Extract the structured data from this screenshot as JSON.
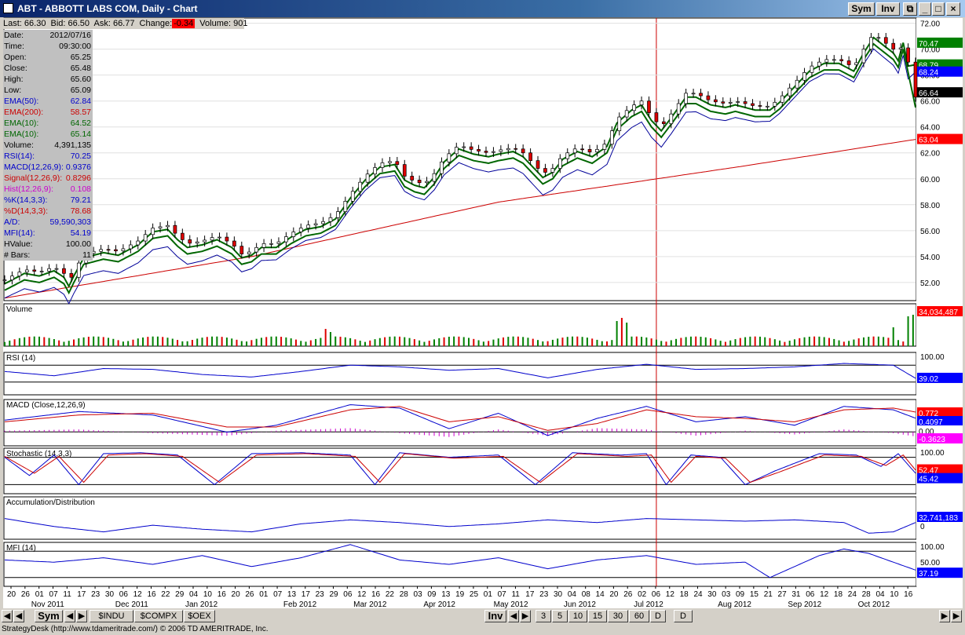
{
  "window": {
    "title": "ABT - ABBOTT LABS COM, Daily - Chart",
    "buttons": [
      "Sym",
      "Inv"
    ]
  },
  "quote_bar": {
    "last": "Last: 66.30",
    "bid": "Bid: 66.50",
    "ask": "Ask: 66.77",
    "change_label": "Change:",
    "change": "-0.34",
    "volume": "Volume: 901"
  },
  "info_panel": [
    {
      "label": "Date:",
      "value": "2012/07/16",
      "color": "#000000"
    },
    {
      "label": "Time:",
      "value": "09:30:00",
      "color": "#000000"
    },
    {
      "label": "Open:",
      "value": "65.25",
      "color": "#000000"
    },
    {
      "label": "Close:",
      "value": "65.48",
      "color": "#000000"
    },
    {
      "label": "High:",
      "value": "65.60",
      "color": "#000000"
    },
    {
      "label": "Low:",
      "value": "65.09",
      "color": "#000000"
    },
    {
      "label": "EMA(50):",
      "value": "62.84",
      "color": "#0000cc"
    },
    {
      "label": "EMA(200):",
      "value": "58.57",
      "color": "#cc0000"
    },
    {
      "label": "EMA(10):",
      "value": "64.52",
      "color": "#006600"
    },
    {
      "label": "EMA(10):",
      "value": "65.14",
      "color": "#006600"
    },
    {
      "label": "Volume:",
      "value": "4,391,135",
      "color": "#000000"
    },
    {
      "label": "RSI(14):",
      "value": "70.25",
      "color": "#0000cc"
    },
    {
      "label": "MACD(12,26,9):",
      "value": "0.9376",
      "color": "#0000cc"
    },
    {
      "label": "Signal(12,26,9):",
      "value": "0.8296",
      "color": "#cc0000"
    },
    {
      "label": "Hist(12,26,9):",
      "value": "0.108",
      "color": "#cc00cc"
    },
    {
      "label": "%K(14,3,3):",
      "value": "79.21",
      "color": "#0000cc"
    },
    {
      "label": "%D(14,3,3):",
      "value": "78.68",
      "color": "#cc0000"
    },
    {
      "label": "A/D:",
      "value": "59,590,303",
      "color": "#0000cc"
    },
    {
      "label": "MFI(14):",
      "value": "54.19",
      "color": "#0000cc"
    },
    {
      "label": "HValue:",
      "value": "100.00",
      "color": "#000000"
    },
    {
      "label": "# Bars:",
      "value": "11",
      "color": "#000000"
    }
  ],
  "chart_data": [
    {
      "type": "candlestick",
      "title": "",
      "y_ticks": [
        "72.00",
        "70.00",
        "68.00",
        "66.00",
        "64.00",
        "62.00",
        "60.00",
        "58.00",
        "56.00",
        "54.00",
        "52.00"
      ],
      "ylim": [
        50.6,
        72.4
      ],
      "x_ticks": [
        "20",
        "26",
        "01",
        "07",
        "11",
        "17",
        "23",
        "30",
        "06",
        "12",
        "16",
        "22",
        "29",
        "04",
        "10",
        "16",
        "20",
        "26",
        "01",
        "07",
        "13",
        "17",
        "23",
        "29",
        "06",
        "12",
        "16",
        "22",
        "28",
        "03",
        "09",
        "13",
        "19",
        "25",
        "01",
        "07",
        "11",
        "17",
        "23",
        "30",
        "04",
        "08",
        "14",
        "20",
        "26",
        "02",
        "06",
        "12",
        "18",
        "24",
        "30",
        "03",
        "09",
        "15",
        "21",
        "27",
        "31",
        "06",
        "12",
        "18",
        "24",
        "28",
        "04",
        "10",
        "16"
      ],
      "x_months": [
        "Nov 2011",
        "Dec 2011",
        "Jan 2012",
        "Feb 2012",
        "Mar 2012",
        "Apr 2012",
        "May 2012",
        "Jun 2012",
        "Jul 2012",
        "Aug 2012",
        "Sep 2012",
        "Oct 2012"
      ],
      "price_path": [
        [
          0,
          52.2
        ],
        [
          8,
          53.0
        ],
        [
          14,
          52.8
        ],
        [
          20,
          53.2
        ],
        [
          24,
          52.7
        ],
        [
          26,
          52.0
        ],
        [
          28,
          52.8
        ],
        [
          32,
          54.2
        ],
        [
          40,
          54.6
        ],
        [
          46,
          54.4
        ],
        [
          54,
          55.2
        ],
        [
          60,
          56.2
        ],
        [
          66,
          56.4
        ],
        [
          70,
          55.6
        ],
        [
          74,
          55.0
        ],
        [
          80,
          55.2
        ],
        [
          86,
          55.6
        ],
        [
          92,
          55.0
        ],
        [
          96,
          54.2
        ],
        [
          100,
          54.4
        ],
        [
          104,
          55.0
        ],
        [
          110,
          55.0
        ],
        [
          116,
          55.8
        ],
        [
          122,
          56.4
        ],
        [
          128,
          56.6
        ],
        [
          134,
          57.2
        ],
        [
          140,
          58.8
        ],
        [
          146,
          60.2
        ],
        [
          152,
          61.2
        ],
        [
          158,
          61.4
        ],
        [
          162,
          60.2
        ],
        [
          166,
          59.8
        ],
        [
          170,
          59.6
        ],
        [
          174,
          60.4
        ],
        [
          178,
          61.6
        ],
        [
          184,
          62.6
        ],
        [
          190,
          62.2
        ],
        [
          196,
          62.0
        ],
        [
          200,
          62.2
        ],
        [
          206,
          62.4
        ],
        [
          210,
          62.0
        ],
        [
          214,
          61.2
        ],
        [
          218,
          60.4
        ],
        [
          222,
          60.8
        ],
        [
          226,
          61.8
        ],
        [
          232,
          62.4
        ],
        [
          238,
          62.0
        ],
        [
          244,
          62.8
        ],
        [
          248,
          64.6
        ],
        [
          254,
          65.6
        ],
        [
          258,
          66.0
        ],
        [
          262,
          64.8
        ],
        [
          266,
          64.0
        ],
        [
          270,
          65.0
        ],
        [
          276,
          66.6
        ],
        [
          280,
          66.6
        ],
        [
          286,
          66.0
        ],
        [
          292,
          65.8
        ],
        [
          296,
          66.0
        ],
        [
          304,
          65.6
        ],
        [
          310,
          65.6
        ],
        [
          314,
          66.2
        ],
        [
          320,
          67.4
        ],
        [
          326,
          68.6
        ],
        [
          332,
          69.2
        ],
        [
          338,
          69.2
        ],
        [
          344,
          68.6
        ],
        [
          348,
          70.0
        ],
        [
          352,
          71.2
        ],
        [
          356,
          70.6
        ],
        [
          360,
          70.0
        ],
        [
          362,
          69.4
        ],
        [
          364,
          70.8
        ],
        [
          366,
          69.0
        ],
        [
          369,
          66.3
        ]
      ],
      "ema_fast_end": 68.8,
      "ema_mid_end": 68.24,
      "ema_200_path": [
        [
          0,
          50.8
        ],
        [
          100,
          54.0
        ],
        [
          200,
          58.2
        ],
        [
          300,
          61.0
        ],
        [
          369,
          63.04
        ]
      ],
      "price_badges": [
        {
          "value": "70.47",
          "color": "#008000"
        },
        {
          "value": "68.79",
          "color": "#008000"
        },
        {
          "value": "68.24",
          "color": "#0000ff"
        },
        {
          "value": "66.64",
          "color": "#000000"
        },
        {
          "value": "63.04",
          "color": "#ff0000"
        }
      ],
      "marker_date_index": 264
    },
    {
      "type": "bar",
      "title": "Volume",
      "badge": "34,034,487",
      "spikes": [
        [
          130,
          0.55
        ],
        [
          132,
          0.45
        ],
        [
          248,
          0.8
        ],
        [
          250,
          0.9
        ],
        [
          252,
          0.75
        ],
        [
          360,
          0.6
        ],
        [
          366,
          0.95
        ],
        [
          368,
          1.0
        ]
      ],
      "base_level": 0.22
    },
    {
      "type": "line",
      "title": "RSI (14)",
      "y_ticks": [
        "100.00"
      ],
      "badge": "39.02",
      "reference_lines": [
        70,
        30
      ],
      "path": [
        [
          0,
          55
        ],
        [
          20,
          45
        ],
        [
          40,
          62
        ],
        [
          60,
          60
        ],
        [
          80,
          48
        ],
        [
          100,
          42
        ],
        [
          120,
          55
        ],
        [
          140,
          70
        ],
        [
          160,
          66
        ],
        [
          180,
          58
        ],
        [
          200,
          62
        ],
        [
          220,
          40
        ],
        [
          240,
          60
        ],
        [
          260,
          72
        ],
        [
          280,
          60
        ],
        [
          300,
          62
        ],
        [
          320,
          66
        ],
        [
          340,
          74
        ],
        [
          360,
          70
        ],
        [
          369,
          39
        ]
      ]
    },
    {
      "type": "line",
      "title": "MACD (Close,12,26,9)",
      "badges": [
        {
          "value": "0.772",
          "color": "#ff0000"
        },
        {
          "value": "0.4097",
          "color": "#0000ff"
        },
        {
          "value": "0.00",
          "color": "#ffffff"
        },
        {
          "value": "-0.3623",
          "color": "#ff00ff"
        }
      ],
      "macd_path": [
        [
          0,
          0.3
        ],
        [
          30,
          0.8
        ],
        [
          60,
          0.6
        ],
        [
          90,
          -0.4
        ],
        [
          110,
          0.0
        ],
        [
          140,
          1.2
        ],
        [
          160,
          1.0
        ],
        [
          180,
          -0.2
        ],
        [
          200,
          0.7
        ],
        [
          220,
          -0.6
        ],
        [
          240,
          0.4
        ],
        [
          260,
          1.1
        ],
        [
          280,
          0.2
        ],
        [
          300,
          0.5
        ],
        [
          320,
          0.0
        ],
        [
          340,
          1.1
        ],
        [
          360,
          0.9
        ],
        [
          369,
          0.41
        ]
      ],
      "signal_path": [
        [
          0,
          0.2
        ],
        [
          30,
          0.6
        ],
        [
          60,
          0.7
        ],
        [
          90,
          -0.1
        ],
        [
          110,
          -0.1
        ],
        [
          140,
          0.9
        ],
        [
          160,
          1.1
        ],
        [
          180,
          0.2
        ],
        [
          200,
          0.5
        ],
        [
          220,
          -0.3
        ],
        [
          240,
          0.1
        ],
        [
          260,
          0.9
        ],
        [
          280,
          0.5
        ],
        [
          300,
          0.4
        ],
        [
          320,
          0.2
        ],
        [
          340,
          0.9
        ],
        [
          360,
          1.0
        ],
        [
          369,
          0.77
        ]
      ]
    },
    {
      "type": "line",
      "title": "Stochastic (14,3,3)",
      "y_ticks": [
        "100.00"
      ],
      "badges": [
        {
          "value": "52.47",
          "color": "#ff0000"
        },
        {
          "value": "45.42",
          "color": "#0000ff"
        }
      ],
      "k_path": [
        [
          0,
          80
        ],
        [
          10,
          40
        ],
        [
          20,
          85
        ],
        [
          30,
          20
        ],
        [
          40,
          88
        ],
        [
          55,
          90
        ],
        [
          70,
          85
        ],
        [
          85,
          20
        ],
        [
          100,
          88
        ],
        [
          120,
          90
        ],
        [
          140,
          85
        ],
        [
          150,
          20
        ],
        [
          160,
          90
        ],
        [
          180,
          80
        ],
        [
          200,
          85
        ],
        [
          215,
          20
        ],
        [
          230,
          90
        ],
        [
          250,
          85
        ],
        [
          260,
          88
        ],
        [
          268,
          20
        ],
        [
          278,
          85
        ],
        [
          290,
          80
        ],
        [
          300,
          20
        ],
        [
          312,
          50
        ],
        [
          330,
          88
        ],
        [
          345,
          85
        ],
        [
          355,
          60
        ],
        [
          362,
          88
        ],
        [
          369,
          45
        ]
      ],
      "d_path": [
        [
          0,
          82
        ],
        [
          12,
          45
        ],
        [
          22,
          82
        ],
        [
          32,
          25
        ],
        [
          42,
          85
        ],
        [
          57,
          88
        ],
        [
          72,
          82
        ],
        [
          87,
          25
        ],
        [
          102,
          85
        ],
        [
          122,
          88
        ],
        [
          142,
          82
        ],
        [
          152,
          25
        ],
        [
          162,
          88
        ],
        [
          182,
          78
        ],
        [
          202,
          82
        ],
        [
          217,
          25
        ],
        [
          232,
          88
        ],
        [
          252,
          82
        ],
        [
          262,
          85
        ],
        [
          270,
          25
        ],
        [
          280,
          82
        ],
        [
          292,
          78
        ],
        [
          302,
          25
        ],
        [
          314,
          48
        ],
        [
          332,
          85
        ],
        [
          347,
          82
        ],
        [
          357,
          62
        ],
        [
          364,
          85
        ],
        [
          369,
          52
        ]
      ]
    },
    {
      "type": "line",
      "title": "Accumulation/Distribution",
      "badge": "32,741,183",
      "zero_label": "0",
      "path": [
        [
          0,
          0.6
        ],
        [
          20,
          0.3
        ],
        [
          40,
          0.1
        ],
        [
          60,
          0.35
        ],
        [
          80,
          0.2
        ],
        [
          100,
          0.1
        ],
        [
          120,
          0.4
        ],
        [
          140,
          0.55
        ],
        [
          160,
          0.45
        ],
        [
          180,
          0.3
        ],
        [
          200,
          0.4
        ],
        [
          220,
          0.55
        ],
        [
          240,
          0.45
        ],
        [
          260,
          0.6
        ],
        [
          280,
          0.55
        ],
        [
          300,
          0.5
        ],
        [
          320,
          0.55
        ],
        [
          340,
          0.45
        ],
        [
          350,
          0.05
        ],
        [
          360,
          0.1
        ],
        [
          369,
          0.45
        ]
      ]
    },
    {
      "type": "line",
      "title": "MFI (14)",
      "y_ticks": [
        "100.00",
        "50.00"
      ],
      "badge": "37.19",
      "path": [
        [
          0,
          60
        ],
        [
          20,
          55
        ],
        [
          40,
          65
        ],
        [
          60,
          50
        ],
        [
          80,
          70
        ],
        [
          100,
          45
        ],
        [
          120,
          65
        ],
        [
          140,
          95
        ],
        [
          160,
          60
        ],
        [
          180,
          50
        ],
        [
          200,
          65
        ],
        [
          220,
          40
        ],
        [
          240,
          60
        ],
        [
          260,
          70
        ],
        [
          280,
          50
        ],
        [
          300,
          55
        ],
        [
          310,
          20
        ],
        [
          330,
          70
        ],
        [
          340,
          85
        ],
        [
          350,
          75
        ],
        [
          360,
          55
        ],
        [
          369,
          37
        ]
      ]
    }
  ],
  "bottom_bar": {
    "sym_label": "Sym",
    "symbol_tabs": [
      "$INDU",
      "$COMPX",
      "$OEX"
    ],
    "inv_label": "Inv",
    "period_tabs": [
      "3",
      "5",
      "10",
      "15",
      "30",
      "60",
      "D",
      "D"
    ]
  },
  "status": "StrategyDesk (http://www.tdameritrade.com/) © 2006 TD AMERITRADE, Inc."
}
